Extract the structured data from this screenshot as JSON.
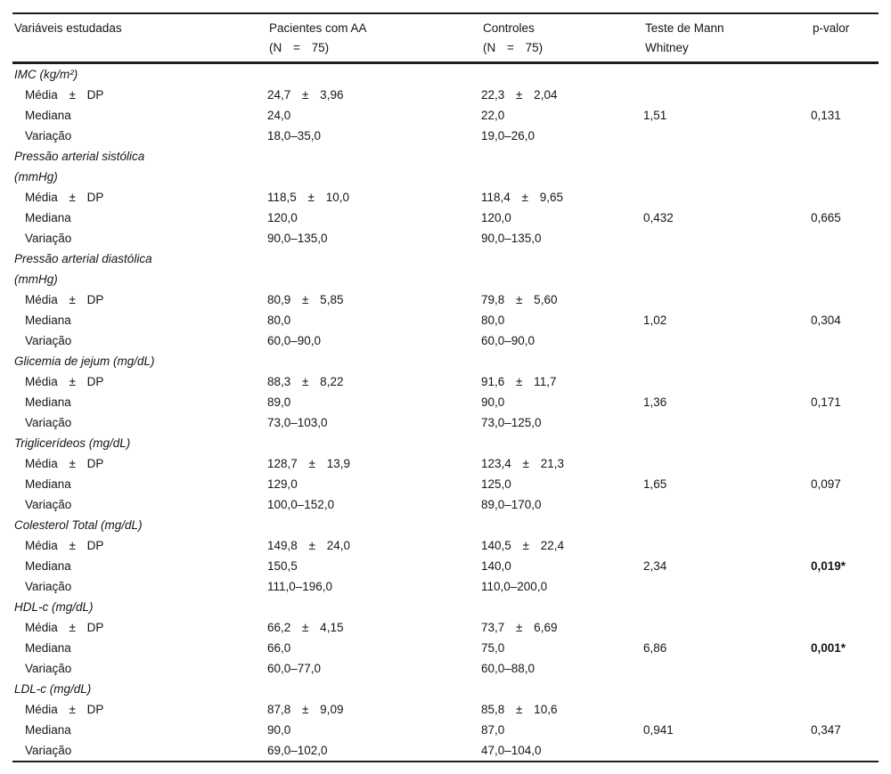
{
  "table": {
    "header": {
      "variables": {
        "line1": "Variáveis estudadas",
        "line2": ""
      },
      "patients": {
        "line1": "Pacientes com AA",
        "line2": "(N = 75)"
      },
      "controls": {
        "line1": "Controles",
        "line2": "(N = 75)"
      },
      "test": {
        "line1": "Teste de Mann",
        "line2": "Whitney"
      },
      "pvalue": {
        "line1": "p-valor",
        "line2": ""
      }
    },
    "row_labels": {
      "mean": "Média ± DP",
      "median": "Mediana",
      "range": "Variação"
    },
    "sections": [
      {
        "title_lines": [
          "IMC (kg/m²)"
        ],
        "rows": [
          {
            "label": "Média ± DP",
            "aa": "24,7 ± 3,96",
            "control": "22,3 ± 2,04",
            "test": "",
            "p": "",
            "significant": false
          },
          {
            "label": "Mediana",
            "aa": "24,0",
            "control": "22,0",
            "test": "1,51",
            "p": "0,131",
            "significant": false
          },
          {
            "label": "Variação",
            "aa": "18,0–35,0",
            "control": "19,0–26,0",
            "test": "",
            "p": "",
            "significant": false
          }
        ]
      },
      {
        "title_lines": [
          "Pressão arterial sistólica",
          "(mmHg)"
        ],
        "rows": [
          {
            "label": "Média ± DP",
            "aa": "118,5 ± 10,0",
            "control": "118,4 ± 9,65",
            "test": "",
            "p": "",
            "significant": false
          },
          {
            "label": "Mediana",
            "aa": "120,0",
            "control": "120,0",
            "test": "0,432",
            "p": "0,665",
            "significant": false
          },
          {
            "label": "Variação",
            "aa": "90,0–135,0",
            "control": "90,0–135,0",
            "test": "",
            "p": "",
            "significant": false
          }
        ]
      },
      {
        "title_lines": [
          "Pressão arterial diastólica",
          "(mmHg)"
        ],
        "rows": [
          {
            "label": "Média ± DP",
            "aa": "80,9 ± 5,85",
            "control": "79,8 ± 5,60",
            "test": "",
            "p": "",
            "significant": false
          },
          {
            "label": "Mediana",
            "aa": "80,0",
            "control": "80,0",
            "test": "1,02",
            "p": "0,304",
            "significant": false
          },
          {
            "label": "Variação",
            "aa": "60,0–90,0",
            "control": "60,0–90,0",
            "test": "",
            "p": "",
            "significant": false
          }
        ]
      },
      {
        "title_lines": [
          "Glicemia de jejum (mg/dL)"
        ],
        "rows": [
          {
            "label": "Média ± DP",
            "aa": "88,3 ± 8,22",
            "control": "91,6 ± 11,7",
            "test": "",
            "p": "",
            "significant": false
          },
          {
            "label": "Mediana",
            "aa": "89,0",
            "control": "90,0",
            "test": "1,36",
            "p": "0,171",
            "significant": false
          },
          {
            "label": "Variação",
            "aa": "73,0–103,0",
            "control": "73,0–125,0",
            "test": "",
            "p": "",
            "significant": false
          }
        ]
      },
      {
        "title_lines": [
          "Triglicerídeos (mg/dL)"
        ],
        "rows": [
          {
            "label": "Média ± DP",
            "aa": "128,7 ± 13,9",
            "control": "123,4 ± 21,3",
            "test": "",
            "p": "",
            "significant": false
          },
          {
            "label": "Mediana",
            "aa": "129,0",
            "control": "125,0",
            "test": "1,65",
            "p": "0,097",
            "significant": false
          },
          {
            "label": "Variação",
            "aa": "100,0–152,0",
            "control": "89,0–170,0",
            "test": "",
            "p": "",
            "significant": false
          }
        ]
      },
      {
        "title_lines": [
          "Colesterol Total (mg/dL)"
        ],
        "rows": [
          {
            "label": "Média ± DP",
            "aa": "149,8 ± 24,0",
            "control": "140,5 ± 22,4",
            "test": "",
            "p": "",
            "significant": false
          },
          {
            "label": "Mediana",
            "aa": "150,5",
            "control": "140,0",
            "test": "2,34",
            "p": "0,019*",
            "significant": true
          },
          {
            "label": "Variação",
            "aa": "111,0–196,0",
            "control": "110,0–200,0",
            "test": "",
            "p": "",
            "significant": false
          }
        ]
      },
      {
        "title_lines": [
          "HDL-c (mg/dL)"
        ],
        "rows": [
          {
            "label": "Média ± DP",
            "aa": "66,2 ± 4,15",
            "control": "73,7 ± 6,69",
            "test": "",
            "p": "",
            "significant": false
          },
          {
            "label": "Mediana",
            "aa": "66,0",
            "control": "75,0",
            "test": "6,86",
            "p": "0,001*",
            "significant": true
          },
          {
            "label": "Variação",
            "aa": "60,0–77,0",
            "control": "60,0–88,0",
            "test": "",
            "p": "",
            "significant": false
          }
        ]
      },
      {
        "title_lines": [
          "LDL-c (mg/dL)"
        ],
        "rows": [
          {
            "label": "Média ± DP",
            "aa": "87,8 ± 9,09",
            "control": "85,8 ± 10,6",
            "test": "",
            "p": "",
            "significant": false
          },
          {
            "label": "Mediana",
            "aa": "90,0",
            "control": "87,0",
            "test": "0,941",
            "p": "0,347",
            "significant": false
          },
          {
            "label": "Variação",
            "aa": "69,0–102,0",
            "control": "47,0–104,0",
            "test": "",
            "p": "",
            "significant": false
          }
        ]
      }
    ]
  }
}
